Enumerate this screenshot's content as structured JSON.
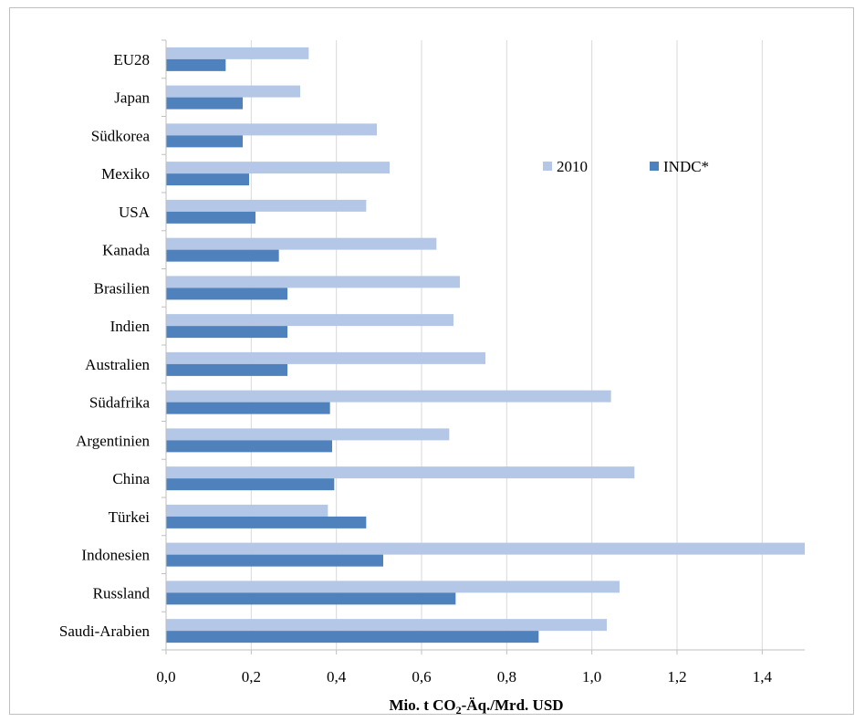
{
  "chart_data": {
    "type": "bar",
    "orientation": "horizontal",
    "categories": [
      "EU28",
      "Japan",
      "Südkorea",
      "Mexiko",
      "USA",
      "Kanada",
      "Brasilien",
      "Indien",
      "Australien",
      "Südafrika",
      "Argentinien",
      "China",
      "Türkei",
      "Indonesien",
      "Russland",
      "Saudi-Arabien"
    ],
    "series": [
      {
        "name": "2010",
        "color": "#b4c7e7",
        "values": [
          0.335,
          0.315,
          0.495,
          0.525,
          0.47,
          0.635,
          0.69,
          0.675,
          0.75,
          1.045,
          0.665,
          1.1,
          0.38,
          1.5,
          1.065,
          1.035
        ]
      },
      {
        "name": "INDC*",
        "color": "#4f81bd",
        "values": [
          0.14,
          0.18,
          0.18,
          0.195,
          0.21,
          0.265,
          0.285,
          0.285,
          0.285,
          0.385,
          0.39,
          0.395,
          0.47,
          0.51,
          0.68,
          0.875
        ]
      }
    ],
    "xlim": [
      0,
      1.5
    ],
    "xticks": [
      "0,0",
      "0,2",
      "0,4",
      "0,6",
      "0,8",
      "1,0",
      "1,2",
      "1,4"
    ],
    "xlabel": {
      "main": "Mio. t CO",
      "sub": "2",
      "rest": "-Äq./Mrd. USD"
    },
    "grid": "vertical",
    "legend_position": "top-right",
    "gridline_color": "#d9d9d9",
    "axis_color": "#bfbfbf"
  }
}
